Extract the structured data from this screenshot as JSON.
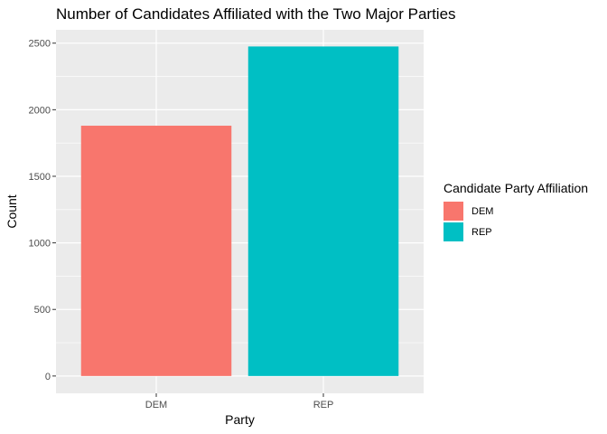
{
  "chart_data": {
    "type": "bar",
    "title": "Number of Candidates Affiliated with the Two Major Parties",
    "xlabel": "Party",
    "ylabel": "Count",
    "categories": [
      "DEM",
      "REP"
    ],
    "values": [
      1880,
      2475
    ],
    "ylim": [
      0,
      2600
    ],
    "yticks": [
      0,
      500,
      1000,
      1500,
      2000,
      2500
    ],
    "grid": true,
    "legend": {
      "title": "Candidate Party Affiliation",
      "placement": "right",
      "entries": [
        "DEM",
        "REP"
      ]
    },
    "colors": {
      "DEM": "#F8766D",
      "REP": "#00BFC4",
      "panel_background": "#EBEBEB",
      "grid": "#FFFFFF"
    }
  }
}
